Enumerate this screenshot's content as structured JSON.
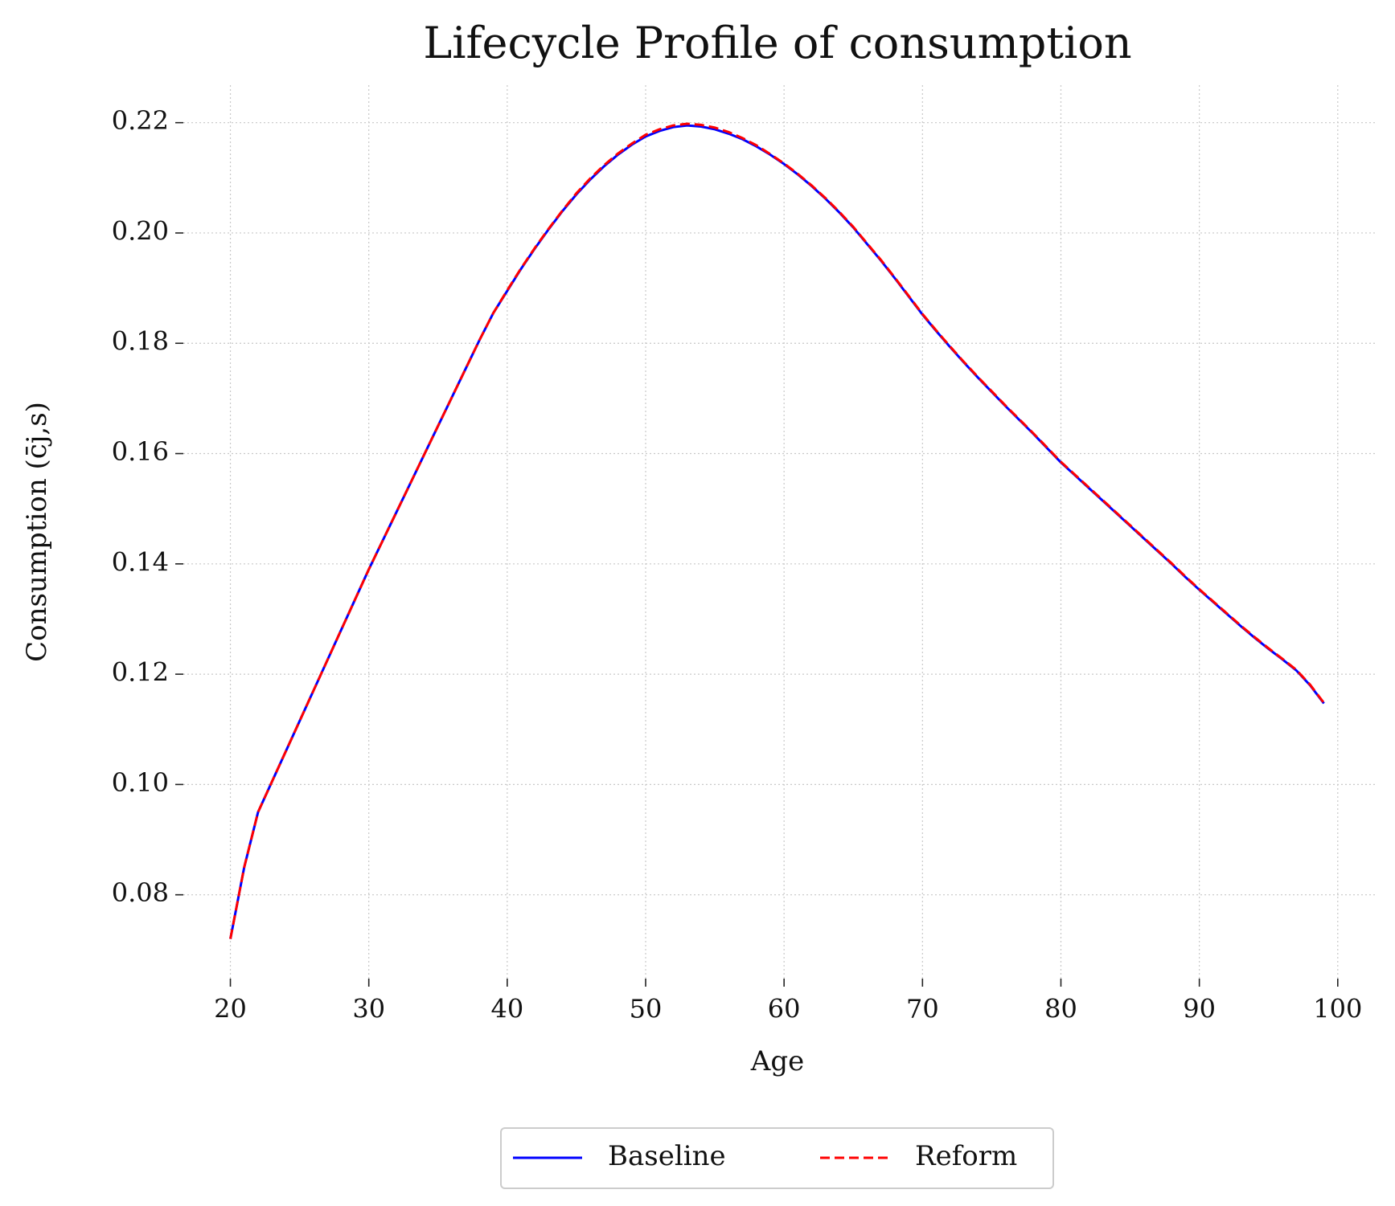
{
  "chart_data": {
    "type": "line",
    "title": "Lifecycle Profile of consumption",
    "xlabel": "Age",
    "ylabel": "Consumption (c̄j,s)",
    "x": [
      20,
      21,
      22,
      23,
      24,
      25,
      26,
      27,
      28,
      29,
      30,
      31,
      32,
      33,
      34,
      35,
      36,
      37,
      38,
      39,
      40,
      41,
      42,
      43,
      44,
      45,
      46,
      47,
      48,
      49,
      50,
      51,
      52,
      53,
      54,
      55,
      56,
      57,
      58,
      59,
      60,
      61,
      62,
      63,
      64,
      65,
      66,
      67,
      68,
      69,
      70,
      71,
      72,
      73,
      74,
      75,
      76,
      77,
      78,
      79,
      80,
      81,
      82,
      83,
      84,
      85,
      86,
      87,
      88,
      89,
      90,
      91,
      92,
      93,
      94,
      95,
      96,
      97,
      98,
      99
    ],
    "series": [
      {
        "name": "Baseline",
        "color": "#0000ff",
        "dash": "solid",
        "values": [
          0.072,
          0.085,
          0.095,
          0.1005,
          0.106,
          0.1115,
          0.117,
          0.1225,
          0.128,
          0.1335,
          0.139,
          0.1442,
          0.1494,
          0.1546,
          0.1598,
          0.165,
          0.1702,
          0.1754,
          0.1806,
          0.1855,
          0.1895,
          0.1935,
          0.1972,
          0.2007,
          0.204,
          0.207,
          0.2097,
          0.2121,
          0.2142,
          0.216,
          0.2175,
          0.2185,
          0.2192,
          0.2195,
          0.2193,
          0.2188,
          0.218,
          0.217,
          0.2157,
          0.2142,
          0.2125,
          0.2106,
          0.2085,
          0.2062,
          0.2037,
          0.201,
          0.198,
          0.195,
          0.1918,
          0.1885,
          0.1852,
          0.1822,
          0.1793,
          0.1765,
          0.1738,
          0.1712,
          0.1686,
          0.1661,
          0.1636,
          0.161,
          0.1584,
          0.1561,
          0.1538,
          0.1515,
          0.1492,
          0.1469,
          0.1446,
          0.1423,
          0.14,
          0.1376,
          0.1353,
          0.1331,
          0.1309,
          0.1287,
          0.1266,
          0.1246,
          0.1227,
          0.1207,
          0.118,
          0.1147
        ]
      },
      {
        "name": "Reform",
        "color": "#ff0000",
        "dash": "dashed",
        "values": [
          0.072,
          0.085,
          0.095,
          0.1005,
          0.106,
          0.1115,
          0.117,
          0.1225,
          0.128,
          0.1335,
          0.139,
          0.1442,
          0.1494,
          0.1546,
          0.1598,
          0.165,
          0.1702,
          0.1754,
          0.1806,
          0.1855,
          0.1896,
          0.1936,
          0.1973,
          0.2008,
          0.2041,
          0.2072,
          0.2099,
          0.2123,
          0.2144,
          0.2162,
          0.2178,
          0.2188,
          0.2195,
          0.2198,
          0.2196,
          0.2191,
          0.2183,
          0.2172,
          0.2159,
          0.2143,
          0.2126,
          0.2107,
          0.2086,
          0.2063,
          0.2038,
          0.2011,
          0.1981,
          0.1951,
          0.1919,
          0.1886,
          0.1853,
          0.1823,
          0.1794,
          0.1766,
          0.1739,
          0.1713,
          0.1687,
          0.1662,
          0.1637,
          0.1611,
          0.1585,
          0.1562,
          0.1539,
          0.1516,
          0.1493,
          0.147,
          0.1447,
          0.1424,
          0.1401,
          0.1377,
          0.1354,
          0.1332,
          0.131,
          0.1288,
          0.1267,
          0.1247,
          0.1228,
          0.1208,
          0.1181,
          0.1148
        ]
      }
    ],
    "xlim": [
      16.6,
      102.8
    ],
    "ylim": [
      0.0648,
      0.2268
    ],
    "xticks": [
      20,
      30,
      40,
      50,
      60,
      70,
      80,
      90,
      100
    ],
    "yticks": [
      {
        "value": 0.08,
        "label": "0.08"
      },
      {
        "value": 0.1,
        "label": "0.10"
      },
      {
        "value": 0.12,
        "label": "0.12"
      },
      {
        "value": 0.14,
        "label": "0.14"
      },
      {
        "value": 0.16,
        "label": "0.16"
      },
      {
        "value": 0.18,
        "label": "0.18"
      },
      {
        "value": 0.2,
        "label": "0.20"
      },
      {
        "value": 0.22,
        "label": "0.22"
      }
    ],
    "grid": true,
    "legend": "bottom"
  }
}
